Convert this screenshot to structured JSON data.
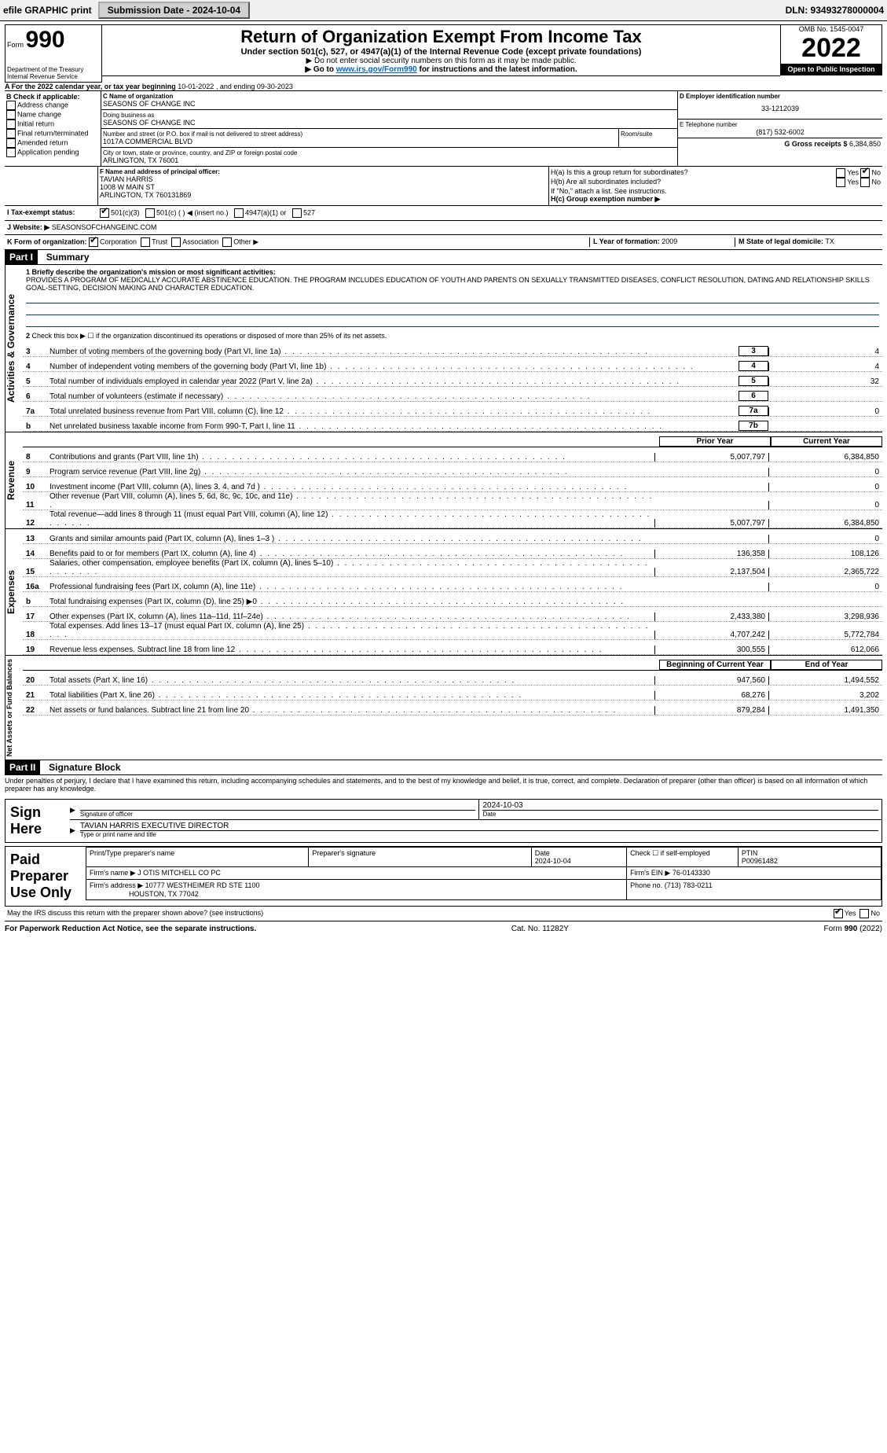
{
  "topbar": {
    "efile": "efile GRAPHIC print",
    "submission": "Submission Date - 2024-10-04",
    "dln": "DLN: 93493278000004"
  },
  "header": {
    "form_label": "Form",
    "form_number": "990",
    "title": "Return of Organization Exempt From Income Tax",
    "subtitle": "Under section 501(c), 527, or 4947(a)(1) of the Internal Revenue Code (except private foundations)",
    "note1": "▶ Do not enter social security numbers on this form as it may be made public.",
    "note2_pre": "▶ Go to ",
    "note2_link": "www.irs.gov/Form990",
    "note2_post": " for instructions and the latest information.",
    "omb": "OMB No. 1545-0047",
    "year": "2022",
    "open": "Open to Public Inspection",
    "dept1": "Department of the Treasury",
    "dept2": "Internal Revenue Service"
  },
  "periodA": {
    "prefix": "A For the 2022 calendar year, or tax year beginning ",
    "begin": "10-01-2022",
    "mid": " , and ending ",
    "end": "09-30-2023"
  },
  "colB": {
    "label": "B Check if applicable:",
    "opts": [
      "Address change",
      "Name change",
      "Initial return",
      "Final return/terminated",
      "Amended return",
      "Application pending"
    ]
  },
  "colC": {
    "name_label": "C Name of organization",
    "name": "SEASONS OF CHANGE INC",
    "dba_label": "Doing business as",
    "dba": "SEASONS OF CHANGE INC",
    "addr_label": "Number and street (or P.O. box if mail is not delivered to street address)",
    "room_label": "Room/suite",
    "addr": "1017A COMMERCIAL BLVD",
    "city_label": "City or town, state or province, country, and ZIP or foreign postal code",
    "city": "ARLINGTON, TX  76001"
  },
  "colD": {
    "label": "D Employer identification number",
    "ein": "33-1212039"
  },
  "colE": {
    "label": "E Telephone number",
    "phone": "(817) 532-6002"
  },
  "colG": {
    "label": "G Gross receipts $",
    "val": "6,384,850"
  },
  "officerF": {
    "label": "F Name and address of principal officer:",
    "name": "TAVIAN HARRIS",
    "addr1": "1008 W MAIN ST",
    "addr2": "ARLINGTON, TX  760131869"
  },
  "H": {
    "a": "H(a) Is this a group return for subordinates?",
    "b": "H(b) Are all subordinates included?",
    "note": "If \"No,\" attach a list. See instructions.",
    "c": "H(c) Group exemption number ▶",
    "yes": "Yes",
    "no": "No"
  },
  "I": {
    "label": "I Tax-exempt status:",
    "o1": "501(c)(3)",
    "o2": "501(c) (   ) ◀ (insert no.)",
    "o3": "4947(a)(1) or",
    "o4": "527"
  },
  "J": {
    "label": "J Website: ▶",
    "val": "SEASONSOFCHANGEINC.COM"
  },
  "K": {
    "label": "K Form of organization:",
    "opts": [
      "Corporation",
      "Trust",
      "Association",
      "Other ▶"
    ]
  },
  "L": {
    "label": "L Year of formation:",
    "val": "2009"
  },
  "M": {
    "label": "M State of legal domicile:",
    "val": "TX"
  },
  "part1": {
    "num": "Part I",
    "title": "Summary"
  },
  "summary": {
    "s1_label": "1 Briefly describe the organization's mission or most significant activities:",
    "s1_text": "PROVIDES A PROGRAM OF MEDICALLY ACCURATE ABSTINENCE EDUCATION. THE PROGRAM INCLUDES EDUCATION OF YOUTH AND PARENTS ON SEXUALLY TRANSMITTED DISEASES, CONFLICT RESOLUTION, DATING AND RELATIONSHIP SKILLS GOAL-SETTING, DECISION MAKING AND CHARACTER EDUCATION.",
    "s2": "Check this box ▶ ☐ if the organization discontinued its operations or disposed of more than 25% of its net assets.",
    "vtab1": "Activities & Governance",
    "vtab2": "Revenue",
    "vtab3": "Expenses",
    "vtab4": "Net Assets or Fund Balances",
    "col_prior": "Prior Year",
    "col_cur": "Current Year",
    "col_boy": "Beginning of Current Year",
    "col_eoy": "End of Year",
    "lines_top": [
      {
        "n": "3",
        "t": "Number of voting members of the governing body (Part VI, line 1a)",
        "slot": "3",
        "v": "4"
      },
      {
        "n": "4",
        "t": "Number of independent voting members of the governing body (Part VI, line 1b)",
        "slot": "4",
        "v": "4"
      },
      {
        "n": "5",
        "t": "Total number of individuals employed in calendar year 2022 (Part V, line 2a)",
        "slot": "5",
        "v": "32"
      },
      {
        "n": "6",
        "t": "Total number of volunteers (estimate if necessary)",
        "slot": "6",
        "v": ""
      },
      {
        "n": "7a",
        "t": "Total unrelated business revenue from Part VIII, column (C), line 12",
        "slot": "7a",
        "v": "0"
      },
      {
        "n": "b",
        "t": "Net unrelated business taxable income from Form 990-T, Part I, line 11",
        "slot": "7b",
        "v": ""
      }
    ],
    "lines_rev": [
      {
        "n": "8",
        "t": "Contributions and grants (Part VIII, line 1h)",
        "p": "5,007,797",
        "c": "6,384,850"
      },
      {
        "n": "9",
        "t": "Program service revenue (Part VIII, line 2g)",
        "p": "",
        "c": "0"
      },
      {
        "n": "10",
        "t": "Investment income (Part VIII, column (A), lines 3, 4, and 7d )",
        "p": "",
        "c": "0"
      },
      {
        "n": "11",
        "t": "Other revenue (Part VIII, column (A), lines 5, 6d, 8c, 9c, 10c, and 11e)",
        "p": "",
        "c": "0"
      },
      {
        "n": "12",
        "t": "Total revenue—add lines 8 through 11 (must equal Part VIII, column (A), line 12)",
        "p": "5,007,797",
        "c": "6,384,850"
      }
    ],
    "lines_exp": [
      {
        "n": "13",
        "t": "Grants and similar amounts paid (Part IX, column (A), lines 1–3 )",
        "p": "",
        "c": "0"
      },
      {
        "n": "14",
        "t": "Benefits paid to or for members (Part IX, column (A), line 4)",
        "p": "136,358",
        "c": "108,126"
      },
      {
        "n": "15",
        "t": "Salaries, other compensation, employee benefits (Part IX, column (A), lines 5–10)",
        "p": "2,137,504",
        "c": "2,365,722"
      },
      {
        "n": "16a",
        "t": "Professional fundraising fees (Part IX, column (A), line 11e)",
        "p": "",
        "c": "0"
      },
      {
        "n": "b",
        "t": "Total fundraising expenses (Part IX, column (D), line 25) ▶0",
        "p": "grey",
        "c": "grey"
      },
      {
        "n": "17",
        "t": "Other expenses (Part IX, column (A), lines 11a–11d, 11f–24e)",
        "p": "2,433,380",
        "c": "3,298,936"
      },
      {
        "n": "18",
        "t": "Total expenses. Add lines 13–17 (must equal Part IX, column (A), line 25)",
        "p": "4,707,242",
        "c": "5,772,784"
      },
      {
        "n": "19",
        "t": "Revenue less expenses. Subtract line 18 from line 12",
        "p": "300,555",
        "c": "612,066"
      }
    ],
    "lines_net": [
      {
        "n": "20",
        "t": "Total assets (Part X, line 16)",
        "p": "947,560",
        "c": "1,494,552"
      },
      {
        "n": "21",
        "t": "Total liabilities (Part X, line 26)",
        "p": "68,276",
        "c": "3,202"
      },
      {
        "n": "22",
        "t": "Net assets or fund balances. Subtract line 21 from line 20",
        "p": "879,284",
        "c": "1,491,350"
      }
    ]
  },
  "part2": {
    "num": "Part II",
    "title": "Signature Block"
  },
  "sig": {
    "decl": "Under penalties of perjury, I declare that I have examined this return, including accompanying schedules and statements, and to the best of my knowledge and belief, it is true, correct, and complete. Declaration of preparer (other than officer) is based on all information of which preparer has any knowledge.",
    "sign": "Sign Here",
    "sig_off": "Signature of officer",
    "date": "Date",
    "date_val": "2024-10-03",
    "name": "TAVIAN HARRIS  EXECUTIVE DIRECTOR",
    "type": "Type or print name and title",
    "paid": "Paid Preparer Use Only",
    "ph1": "Print/Type preparer's name",
    "ph2": "Preparer's signature",
    "ph3": "Date",
    "ph3v": "2024-10-04",
    "ph4": "Check ☐ if self-employed",
    "ph5": "PTIN",
    "ptin": "P00961482",
    "firm_label": "Firm's name ▶",
    "firm": "J OTIS MITCHELL CO PC",
    "ein_label": "Firm's EIN ▶",
    "ein": "76-0143330",
    "addr_label": "Firm's address ▶",
    "addr1": "10777 WESTHEIMER RD STE 1100",
    "addr2": "HOUSTON, TX  77042",
    "phone_label": "Phone no.",
    "phone": "(713) 783-0211",
    "may": "May the IRS discuss this return with the preparer shown above? (see instructions)",
    "yes": "Yes",
    "no": "No"
  },
  "foot": {
    "left": "For Paperwork Reduction Act Notice, see the separate instructions.",
    "mid": "Cat. No. 11282Y",
    "right": "Form 990 (2022)"
  }
}
